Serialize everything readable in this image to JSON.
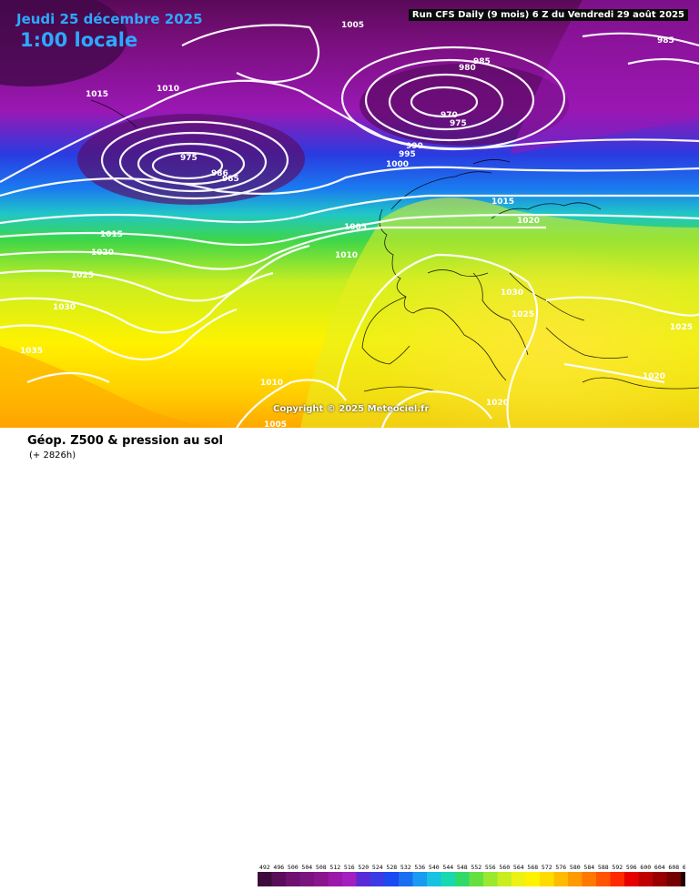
{
  "header": {
    "date": "Jeudi 25 décembre 2025",
    "local_time": "1:00 locale",
    "run_info": "Run CFS Daily (9 mois) 6 Z du Vendredi 29 août 2025"
  },
  "map": {
    "copyright": "Copyright © 2025 Meteociel.fr",
    "pressure_labels": [
      "1005",
      "985",
      "985",
      "980",
      "1015",
      "1010",
      "970",
      "975",
      "975",
      "986",
      "985",
      "990",
      "995",
      "1000",
      "1015",
      "1005",
      "1020",
      "1015",
      "1010",
      "1020",
      "1025",
      "1030",
      "1030",
      "1025",
      "1025",
      "1035",
      "1020",
      "1010",
      "1020",
      "1005"
    ],
    "colors": {
      "low_purple": "#5c0a5c",
      "magenta": "#9b18b8",
      "blue": "#1a2fd9",
      "green": "#3fd24a",
      "yellow": "#fff200",
      "orange": "#ff9900",
      "isobar": "#ffffff",
      "coastline": "#000000"
    }
  },
  "footer": {
    "parameter": "Géop. Z500 & pression au sol",
    "lead_time": "(+ 2826h)"
  },
  "scale": {
    "ticks": [
      "492",
      "496",
      "500",
      "504",
      "508",
      "512",
      "516",
      "520",
      "524",
      "528",
      "532",
      "536",
      "540",
      "544",
      "548",
      "552",
      "556",
      "560",
      "564",
      "568",
      "572",
      "576",
      "580",
      "584",
      "588",
      "592",
      "596",
      "600",
      "604",
      "608",
      "612"
    ],
    "colors": [
      "#3c0b3c",
      "#5a0e5a",
      "#6e1170",
      "#7a1580",
      "#8a168e",
      "#9b18a8",
      "#a21fc0",
      "#5a2ad8",
      "#3a3ae6",
      "#1a4af0",
      "#1a6ef0",
      "#1a9af0",
      "#18c2e0",
      "#18d8b0",
      "#30da6a",
      "#66e040",
      "#9ae830",
      "#c8ee20",
      "#eef212",
      "#fff200",
      "#ffdc00",
      "#ffbb00",
      "#ff9a00",
      "#ff7800",
      "#ff5400",
      "#ff2a00",
      "#e80000",
      "#c00000",
      "#980000",
      "#740000",
      "#200000"
    ]
  }
}
